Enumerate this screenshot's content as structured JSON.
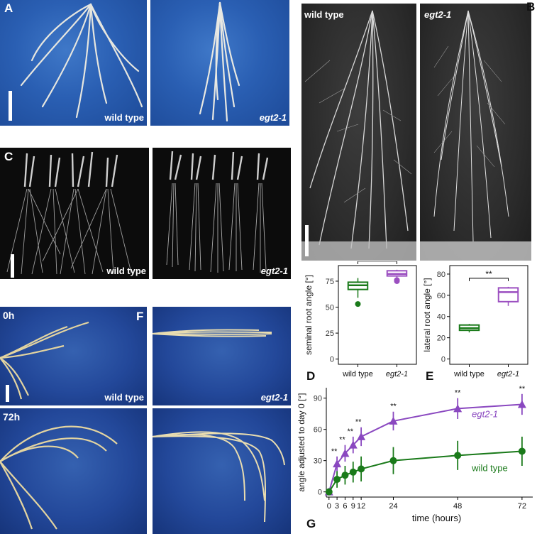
{
  "panels": {
    "A": {
      "letter": "A",
      "left_caption": "wild type",
      "right_caption": "egt2-1"
    },
    "B": {
      "letter": "B",
      "left_caption": "wild type",
      "right_caption": "egt2-1"
    },
    "C": {
      "letter": "C",
      "left_caption": "wild type",
      "right_caption": "egt2-1"
    },
    "F": {
      "letter": "F",
      "time_top": "0h",
      "time_bottom": "72h",
      "left_caption": "wild type",
      "right_caption": "egt2-1"
    },
    "D": {
      "letter": "D"
    },
    "E": {
      "letter": "E"
    },
    "G": {
      "letter": "G"
    }
  },
  "chart_data": [
    {
      "id": "D",
      "type": "box",
      "ylabel": "seminal root angle [°]",
      "categories": [
        "wild type",
        "egt2-1"
      ],
      "yticks": [
        0,
        25,
        50,
        75
      ],
      "ylim": [
        -5,
        90
      ],
      "boxes": [
        {
          "name": "wild type",
          "color": "#1a7a1a",
          "q1": 67,
          "median": 71,
          "q3": 74,
          "whisker_low": 59,
          "whisker_high": 78,
          "outliers": [
            53
          ]
        },
        {
          "name": "egt2-1",
          "color": "#9b4fc0",
          "q1": 80,
          "median": 82,
          "q3": 85,
          "whisker_low": 78,
          "whisker_high": 86,
          "outliers": [
            76,
            75
          ]
        }
      ],
      "significance": "**"
    },
    {
      "id": "E",
      "type": "box",
      "ylabel": "lateral root angle [°]",
      "categories": [
        "wild type",
        "egt2-1"
      ],
      "yticks": [
        0,
        20,
        40,
        60,
        80
      ],
      "ylim": [
        -5,
        88
      ],
      "boxes": [
        {
          "name": "wild type",
          "color": "#1a7a1a",
          "q1": 27,
          "median": 29,
          "q3": 32,
          "whisker_low": 25,
          "whisker_high": 33,
          "outliers": []
        },
        {
          "name": "egt2-1",
          "color": "#9b4fc0",
          "q1": 54,
          "median": 63,
          "q3": 67,
          "whisker_low": 50,
          "whisker_high": 68,
          "outliers": []
        }
      ],
      "significance": "**"
    },
    {
      "id": "G",
      "type": "line",
      "xlabel": "time (hours)",
      "ylabel": "angle adjusted to day 0 [°]",
      "xticks": [
        0,
        3,
        6,
        9,
        12,
        24,
        48,
        72
      ],
      "yticks": [
        0,
        30,
        60,
        90
      ],
      "xlim": [
        -1,
        76
      ],
      "ylim": [
        -5,
        100
      ],
      "series": [
        {
          "name": "egt2-1",
          "color": "#8a48c0",
          "marker": "triangle",
          "x": [
            0,
            3,
            6,
            9,
            12,
            24,
            48,
            72
          ],
          "y": [
            0,
            27,
            37,
            45,
            53,
            68,
            80,
            84
          ],
          "err": [
            0,
            7,
            8,
            8,
            9,
            9,
            10,
            10
          ]
        },
        {
          "name": "wild type",
          "color": "#1a7a1a",
          "marker": "circle",
          "x": [
            0,
            3,
            6,
            9,
            12,
            24,
            48,
            72
          ],
          "y": [
            0,
            12,
            16,
            19,
            22,
            30,
            35,
            39
          ],
          "err": [
            0,
            8,
            9,
            10,
            12,
            13,
            14,
            14
          ]
        }
      ],
      "significance": [
        "**",
        "**",
        "**",
        "**",
        "**",
        "**",
        "**"
      ],
      "significance_x": [
        3,
        6,
        9,
        12,
        24,
        48,
        72
      ]
    }
  ]
}
